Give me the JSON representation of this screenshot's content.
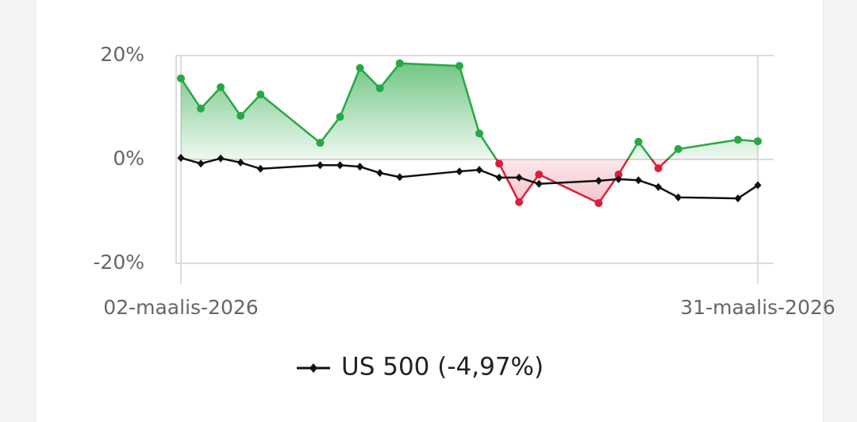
{
  "chart_data": {
    "type": "line",
    "x": [
      "02-maalis-2026",
      "03-maalis-2026",
      "04-maalis-2026",
      "05-maalis-2026",
      "06-maalis-2026",
      "09-maalis-2026",
      "10-maalis-2026",
      "11-maalis-2026",
      "12-maalis-2026",
      "13-maalis-2026",
      "16-maalis-2026",
      "17-maalis-2026",
      "18-maalis-2026",
      "19-maalis-2026",
      "20-maalis-2026",
      "23-maalis-2026",
      "24-maalis-2026",
      "25-maalis-2026",
      "26-maalis-2026",
      "27-maalis-2026",
      "30-maalis-2026",
      "31-maalis-2026"
    ],
    "xticks": [
      "02-maalis-2026",
      "31-maalis-2026"
    ],
    "series": [
      {
        "color": "#27a844",
        "negative_color": "#d9213a",
        "fill": true,
        "values": [
          15.6,
          9.8,
          13.9,
          8.4,
          12.5,
          3.2,
          8.2,
          17.6,
          13.7,
          18.5,
          18.0,
          5.0,
          -0.8,
          -8.2,
          -2.9,
          -8.4,
          -2.9,
          3.4,
          -1.7,
          2.0,
          3.8,
          3.5
        ]
      },
      {
        "name": "US 500 (-4,97%)",
        "color": "#111111",
        "values": [
          0.3,
          -0.8,
          0.2,
          -0.6,
          -1.8,
          -1.1,
          -1.1,
          -1.4,
          -2.6,
          -3.4,
          -2.3,
          -2.0,
          -3.5,
          -3.5,
          -4.7,
          -4.1,
          -3.8,
          -4.0,
          -5.3,
          -7.3,
          -7.5,
          -4.97
        ]
      }
    ],
    "ylim": [
      -20,
      20
    ],
    "yticks": [
      {
        "value": 20,
        "label": "20%"
      },
      {
        "value": 0,
        "label": "0%"
      },
      {
        "value": -20,
        "label": "-20%"
      }
    ],
    "grid": true
  }
}
